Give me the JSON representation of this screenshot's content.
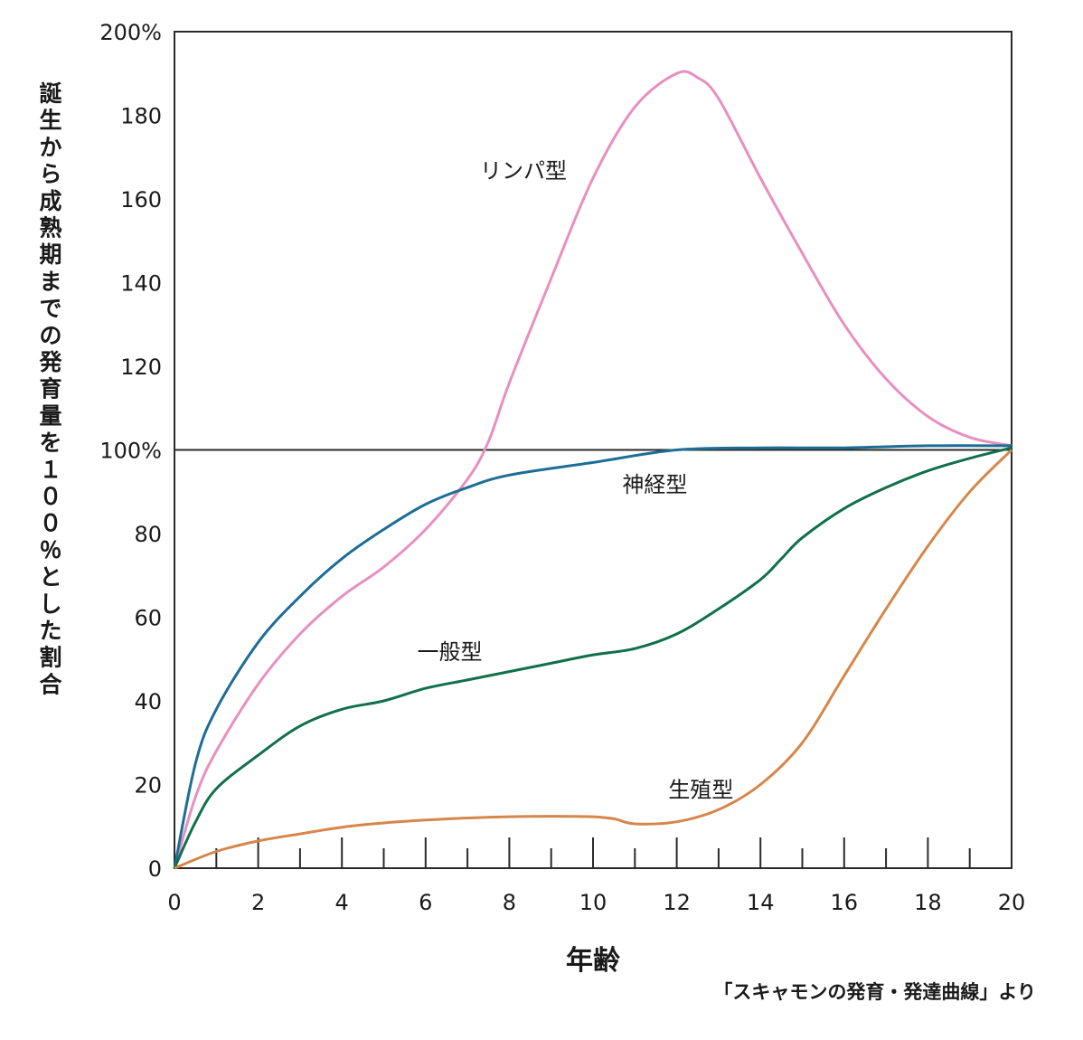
{
  "chart_data": {
    "type": "line",
    "title": "",
    "xlabel": "年齢",
    "ylabel": "誕生から成熟期までの発育量を１００％とした割合",
    "source_note": "「スキャモンの発育・発達曲線」より",
    "xlim": [
      0,
      20
    ],
    "ylim": [
      0,
      200
    ],
    "x_ticks": [
      "0",
      "2",
      "4",
      "6",
      "8",
      "10",
      "12",
      "14",
      "16",
      "18",
      "20"
    ],
    "x_tick_values": [
      0,
      2,
      4,
      6,
      8,
      10,
      12,
      14,
      16,
      18,
      20
    ],
    "y_ticks": [
      "0",
      "20",
      "40",
      "60",
      "80",
      "100%",
      "120",
      "140",
      "160",
      "180",
      "200%"
    ],
    "y_tick_values": [
      0,
      20,
      40,
      60,
      80,
      100,
      120,
      140,
      160,
      180,
      200
    ],
    "reference_line": 100,
    "series": [
      {
        "name": "リンパ型",
        "color": "#e88fbf",
        "label_pos": [
          7.3,
          165
        ],
        "points": [
          [
            0,
            0
          ],
          [
            0.5,
            17
          ],
          [
            1,
            28
          ],
          [
            2,
            44
          ],
          [
            3,
            56
          ],
          [
            4,
            65
          ],
          [
            5,
            72
          ],
          [
            6,
            81
          ],
          [
            7,
            93
          ],
          [
            7.5,
            102
          ],
          [
            8,
            116
          ],
          [
            9,
            141
          ],
          [
            10,
            165
          ],
          [
            11,
            182
          ],
          [
            12,
            190
          ],
          [
            12.5,
            189
          ],
          [
            13,
            184
          ],
          [
            14,
            165
          ],
          [
            15,
            147
          ],
          [
            16,
            130
          ],
          [
            17,
            117
          ],
          [
            18,
            108
          ],
          [
            19,
            103
          ],
          [
            20,
            101
          ]
        ]
      },
      {
        "name": "神経型",
        "color": "#1d6d96",
        "label_pos": [
          10.7,
          90
        ],
        "points": [
          [
            0,
            0
          ],
          [
            0.5,
            25
          ],
          [
            1,
            38
          ],
          [
            2,
            54
          ],
          [
            3,
            65
          ],
          [
            4,
            74
          ],
          [
            5,
            81
          ],
          [
            6,
            87
          ],
          [
            7,
            91
          ],
          [
            8,
            94
          ],
          [
            10,
            97
          ],
          [
            12,
            100
          ],
          [
            14,
            100.5
          ],
          [
            16,
            100.5
          ],
          [
            18,
            101
          ],
          [
            20,
            101
          ]
        ]
      },
      {
        "name": "一般型",
        "color": "#10704a",
        "label_pos": [
          5.8,
          50
        ],
        "points": [
          [
            0,
            0
          ],
          [
            0.5,
            11
          ],
          [
            1,
            19
          ],
          [
            2,
            27
          ],
          [
            3,
            34
          ],
          [
            4,
            38
          ],
          [
            5,
            40
          ],
          [
            6,
            43
          ],
          [
            7,
            45
          ],
          [
            8,
            47
          ],
          [
            9,
            49
          ],
          [
            10,
            51
          ],
          [
            11,
            52.5
          ],
          [
            12,
            56
          ],
          [
            13,
            62
          ],
          [
            14,
            69
          ],
          [
            14.5,
            74
          ],
          [
            15,
            79
          ],
          [
            16,
            86
          ],
          [
            17,
            91
          ],
          [
            18,
            95
          ],
          [
            19,
            98
          ],
          [
            20,
            100.5
          ]
        ]
      },
      {
        "name": "生殖型",
        "color": "#d7864a",
        "label_pos": [
          11.8,
          17
        ],
        "points": [
          [
            0,
            0
          ],
          [
            1,
            4
          ],
          [
            2,
            6.5
          ],
          [
            3,
            8.2
          ],
          [
            4,
            9.8
          ],
          [
            5,
            10.8
          ],
          [
            6,
            11.5
          ],
          [
            7,
            12
          ],
          [
            8,
            12.3
          ],
          [
            9,
            12.4
          ],
          [
            10,
            12.3
          ],
          [
            10.5,
            11.8
          ],
          [
            11,
            10.6
          ],
          [
            12,
            11.1
          ],
          [
            13,
            14
          ],
          [
            14,
            20
          ],
          [
            15,
            30
          ],
          [
            16,
            46
          ],
          [
            17,
            62
          ],
          [
            18,
            77
          ],
          [
            19,
            90
          ],
          [
            20,
            100
          ]
        ]
      }
    ]
  }
}
